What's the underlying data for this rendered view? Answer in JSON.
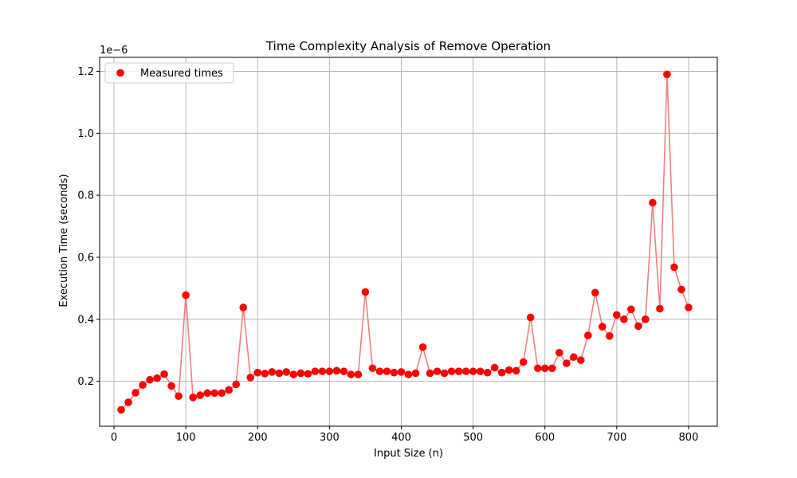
{
  "chart_data": {
    "type": "scatter",
    "title": "Time Complexity Analysis of Remove Operation",
    "xlabel": "Input Size (n)",
    "ylabel": "Execution Time (seconds)",
    "y_offset_label": "1e−6",
    "xlim": [
      -20,
      840
    ],
    "ylim": [
      0.055,
      1.245
    ],
    "x_ticks": [
      0,
      100,
      200,
      300,
      400,
      500,
      600,
      700,
      800
    ],
    "x_tick_labels": [
      "0",
      "100",
      "200",
      "300",
      "400",
      "500",
      "600",
      "700",
      "800"
    ],
    "y_ticks": [
      0.2,
      0.4,
      0.6,
      0.8,
      1.0,
      1.2
    ],
    "y_tick_labels": [
      "0.2",
      "0.4",
      "0.6",
      "0.8",
      "1.0",
      "1.2"
    ],
    "grid": true,
    "legend_position": "top-left",
    "series": [
      {
        "name": "Measured times",
        "marker_color": "#ff0000",
        "line_color": "#f08080",
        "x": [
          10,
          20,
          30,
          40,
          50,
          60,
          70,
          80,
          90,
          100,
          110,
          120,
          130,
          140,
          150,
          160,
          170,
          180,
          190,
          200,
          210,
          220,
          230,
          240,
          250,
          260,
          270,
          280,
          290,
          300,
          310,
          320,
          330,
          340,
          350,
          360,
          370,
          380,
          390,
          400,
          410,
          420,
          430,
          440,
          450,
          460,
          470,
          480,
          490,
          500,
          510,
          520,
          530,
          540,
          550,
          560,
          570,
          580,
          590,
          600,
          610,
          620,
          630,
          640,
          650,
          660,
          670,
          680,
          690,
          700,
          710,
          720,
          730,
          740,
          750,
          760,
          770,
          780,
          790,
          800
        ],
        "y": [
          0.108,
          0.132,
          0.163,
          0.188,
          0.205,
          0.21,
          0.223,
          0.185,
          0.152,
          0.478,
          0.148,
          0.155,
          0.162,
          0.162,
          0.162,
          0.172,
          0.19,
          0.438,
          0.212,
          0.228,
          0.225,
          0.23,
          0.226,
          0.23,
          0.222,
          0.226,
          0.224,
          0.232,
          0.232,
          0.232,
          0.234,
          0.232,
          0.222,
          0.222,
          0.488,
          0.242,
          0.232,
          0.232,
          0.228,
          0.23,
          0.222,
          0.226,
          0.31,
          0.226,
          0.232,
          0.226,
          0.232,
          0.232,
          0.232,
          0.232,
          0.232,
          0.228,
          0.244,
          0.228,
          0.236,
          0.234,
          0.262,
          0.406,
          0.242,
          0.242,
          0.242,
          0.292,
          0.258,
          0.278,
          0.268,
          0.348,
          0.486,
          0.376,
          0.346,
          0.414,
          0.4,
          0.432,
          0.378,
          0.4,
          0.776,
          0.434,
          1.19,
          0.568,
          0.496,
          0.438
        ]
      }
    ]
  }
}
